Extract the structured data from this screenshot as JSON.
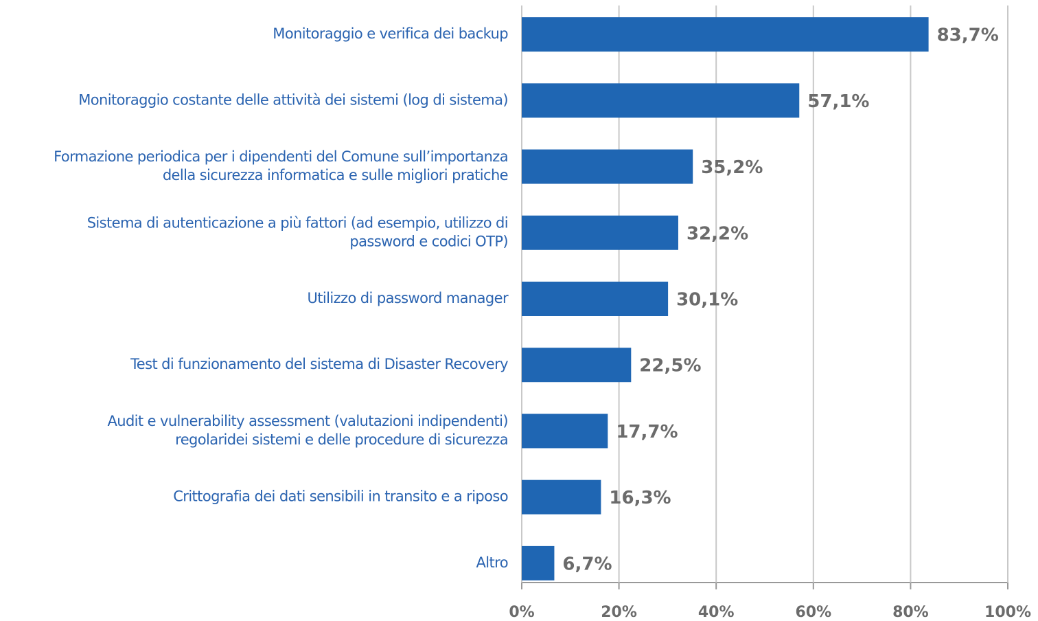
{
  "chart_data": {
    "type": "barh",
    "categories": [
      [
        "Monitoraggio e verifica dei backup"
      ],
      [
        "Monitoraggio costante delle attività dei sistemi (log di sistema)"
      ],
      [
        "Formazione periodica per i dipendenti del Comune sull’importanza",
        "della sicurezza informatica e sulle migliori pratiche"
      ],
      [
        "Sistema di autenticazione a più fattori (ad esempio, utilizzo di",
        "password e codici OTP)"
      ],
      [
        "Utilizzo di password manager"
      ],
      [
        "Test di funzionamento del sistema di Disaster Recovery"
      ],
      [
        "Audit e vulnerability assessment (valutazioni indipendenti)",
        "regolaridei sistemi e delle procedure di sicurezza"
      ],
      [
        "Crittografia dei dati sensibili in transito e a riposo"
      ],
      [
        "Altro"
      ]
    ],
    "values": [
      83.7,
      57.1,
      35.2,
      32.2,
      30.1,
      22.5,
      17.7,
      16.3,
      6.7
    ],
    "value_labels": [
      "83,7%",
      "57,1%",
      "35,2%",
      "32,2%",
      "30,1%",
      "22,5%",
      "17,7%",
      "16,3%",
      "6,7%"
    ],
    "color": "#1f66b3",
    "xlim": [
      0,
      100
    ],
    "xticks": [
      {
        "value": 0,
        "label": "0%"
      },
      {
        "value": 20,
        "label": "20%"
      },
      {
        "value": 40,
        "label": "40%"
      },
      {
        "value": 60,
        "label": "60%"
      },
      {
        "value": 80,
        "label": "80%"
      },
      {
        "value": 100,
        "label": "100%"
      }
    ],
    "grid": true
  }
}
